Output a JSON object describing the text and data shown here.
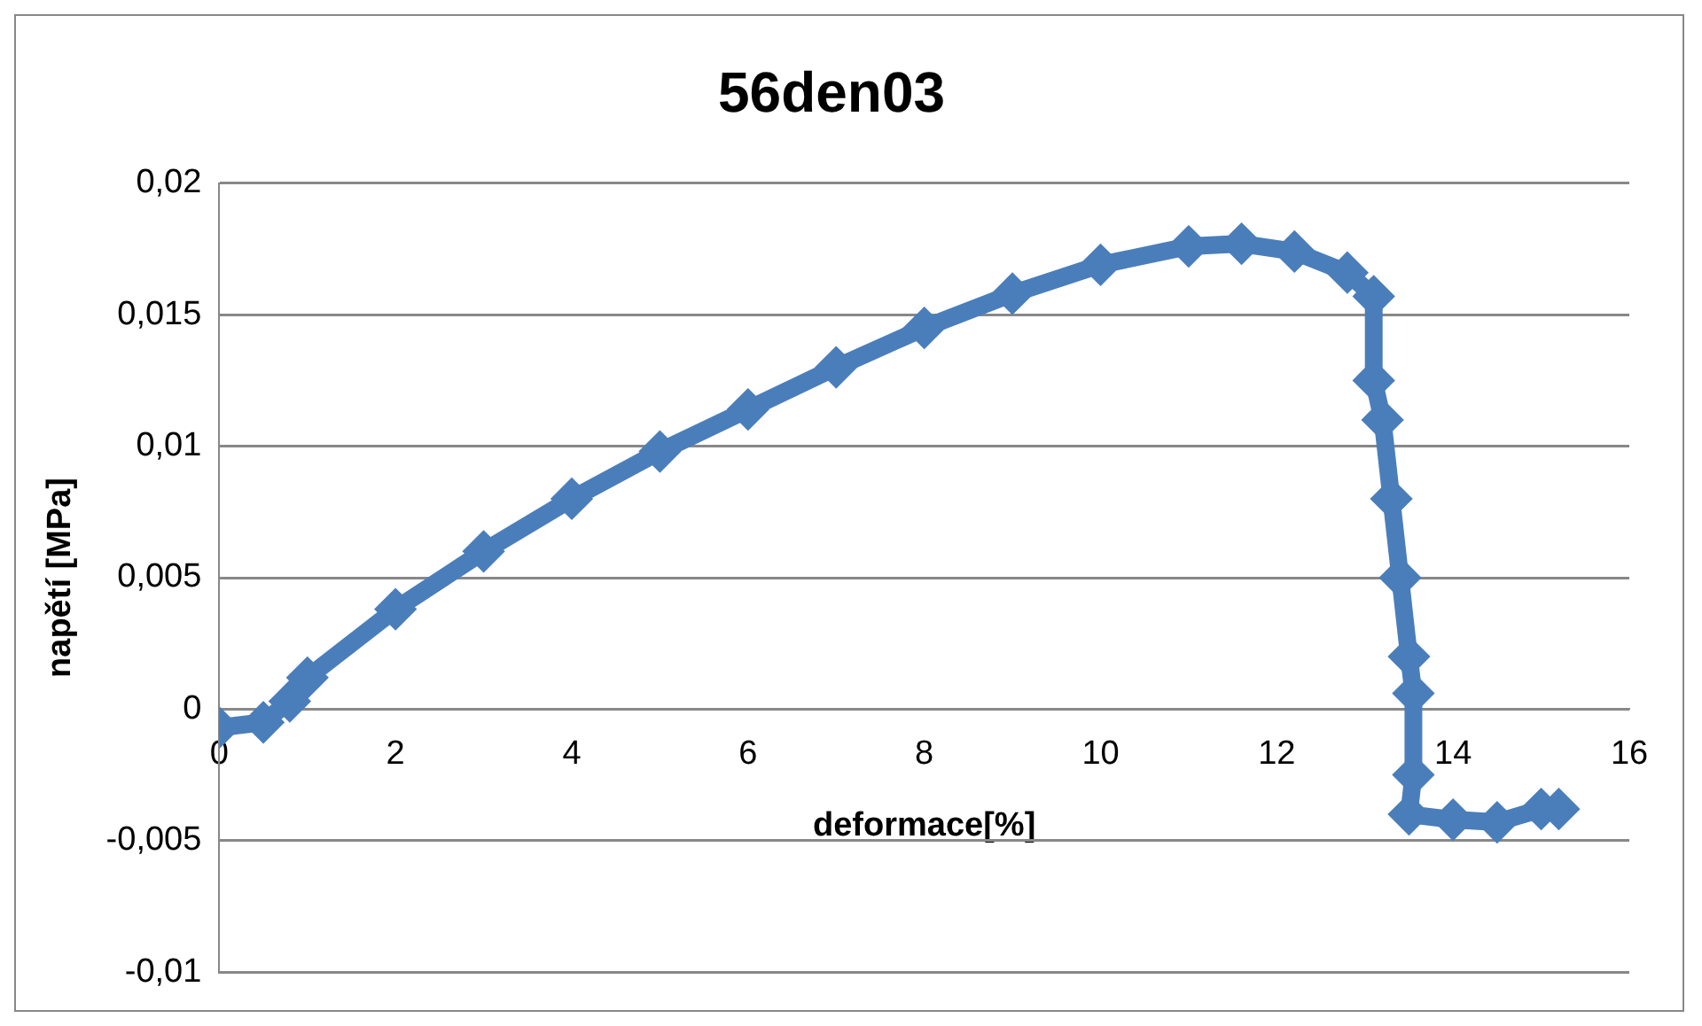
{
  "chart_data": {
    "type": "line",
    "title": "56den03",
    "xlabel": "deformace[%]",
    "ylabel": "napětí [MPa]",
    "xlim": [
      0,
      16
    ],
    "xticks": [
      0,
      2,
      4,
      6,
      8,
      10,
      12,
      14,
      16
    ],
    "ylim": [
      -0.01,
      0.02
    ],
    "yticks": [
      {
        "value": -0.01,
        "label": "-0,01"
      },
      {
        "value": -0.005,
        "label": "-0,005"
      },
      {
        "value": 0,
        "label": "0"
      },
      {
        "value": 0.005,
        "label": "0,005"
      },
      {
        "value": 0.01,
        "label": "0,01"
      },
      {
        "value": 0.015,
        "label": "0,015"
      },
      {
        "value": 0.02,
        "label": "0,02"
      }
    ],
    "grid": "y",
    "legend": false,
    "marker": "diamond",
    "line_style": "solid",
    "series": [
      {
        "color": "#4a7ebb",
        "x": [
          0,
          0.5,
          0.8,
          1,
          2,
          3,
          4,
          5,
          6,
          7,
          8,
          9,
          10,
          11,
          11.6,
          12.2,
          12.8,
          13.1,
          13.1,
          13.2,
          13.3,
          13.4,
          13.5,
          13.55,
          13.55,
          13.5,
          14,
          14.5,
          15,
          15.2
        ],
        "values": [
          -0.0007,
          -0.0005,
          0.0003,
          0.0012,
          0.0038,
          0.006,
          0.008,
          0.0098,
          0.0114,
          0.013,
          0.0145,
          0.0158,
          0.0169,
          0.0176,
          0.0177,
          0.0174,
          0.0166,
          0.0157,
          0.0125,
          0.011,
          0.008,
          0.005,
          0.002,
          0.0006,
          -0.0025,
          -0.004,
          -0.0042,
          -0.0043,
          -0.0038,
          -0.0038
        ]
      }
    ]
  }
}
